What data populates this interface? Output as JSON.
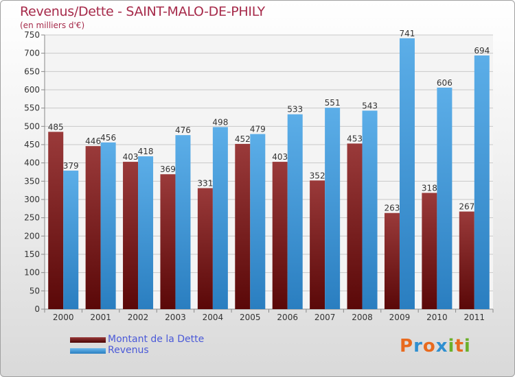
{
  "header": {
    "title": "Revenus/Dette - SAINT-MALO-DE-PHILY",
    "subtitle": "(en milliers d'€)"
  },
  "legend": [
    {
      "label": "Montant de la Dette",
      "color": "#7a1c24"
    },
    {
      "label": "Revenus",
      "color": "#3d9de0"
    }
  ],
  "logo": {
    "letters": [
      "P",
      "r",
      "o",
      "x",
      "i",
      "t",
      "i"
    ],
    "colors": [
      "#e86a1e",
      "#2f8fd0",
      "#e86a1e",
      "#2f8fd0",
      "#6bb02a",
      "#e86a1e",
      "#6bb02a"
    ]
  },
  "chart_data": {
    "type": "bar",
    "title": "Revenus/Dette - SAINT-MALO-DE-PHILY",
    "subtitle": "(en milliers d'€)",
    "xlabel": "",
    "ylabel": "",
    "ylim": [
      0,
      750
    ],
    "yticks": [
      0,
      50,
      100,
      150,
      200,
      250,
      300,
      350,
      400,
      450,
      500,
      550,
      600,
      650,
      700,
      750
    ],
    "grid": true,
    "legend_position": "bottom-left",
    "categories": [
      "2000",
      "2001",
      "2002",
      "2003",
      "2004",
      "2005",
      "2006",
      "2007",
      "2008",
      "2009",
      "2010",
      "2011"
    ],
    "series": [
      {
        "name": "Montant de la Dette",
        "color": "#7a1c24",
        "values": [
          485,
          446,
          403,
          369,
          331,
          452,
          403,
          352,
          453,
          263,
          318,
          267
        ]
      },
      {
        "name": "Revenus",
        "color": "#3d9de0",
        "values": [
          379,
          456,
          418,
          476,
          498,
          479,
          533,
          551,
          543,
          741,
          606,
          694
        ]
      }
    ]
  }
}
